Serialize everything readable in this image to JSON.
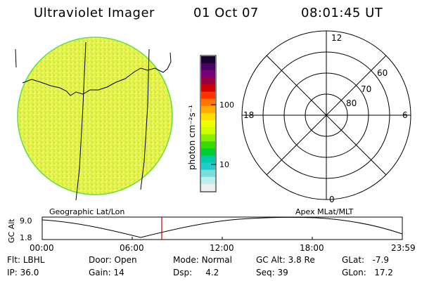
{
  "header": {
    "title": "Ultraviolet Imager",
    "date": "01 Oct 07",
    "time": "08:01:45 UT"
  },
  "colorbar": {
    "unit_label": "photon cm⁻²s⁻¹",
    "ticks": [
      "100",
      "10"
    ],
    "colors": [
      "#1a0030",
      "#4a0066",
      "#7a007a",
      "#9a0040",
      "#cc0000",
      "#ff3300",
      "#ff7700",
      "#ffaa00",
      "#ffdd00",
      "#eeff00",
      "#ccff00",
      "#88ee00",
      "#33dd00",
      "#00cc33",
      "#00ccaa",
      "#22cccc",
      "#77dddd",
      "#bbeeee",
      "#eeeeee"
    ]
  },
  "polar_plot": {
    "mlt_labels": {
      "top": "12",
      "right": "6",
      "bottom": "0",
      "left": "18"
    },
    "lat_labels": [
      "60",
      "70",
      "80"
    ]
  },
  "timeline": {
    "left_label": "Geographic Lat/Lon",
    "right_label": "Apex MLat/MLT",
    "axis_title": "GC Alt",
    "y_ticks": [
      "9.0",
      "1.8"
    ],
    "x_ticks": [
      "00:00",
      "06:00",
      "12:00",
      "18:00",
      "23:59"
    ],
    "marker_color": "#cc0000"
  },
  "status": {
    "row1": [
      {
        "label": "Flt:",
        "value": "LBHL"
      },
      {
        "label": "Door:",
        "value": "Open"
      },
      {
        "label": "Mode:",
        "value": "Normal"
      },
      {
        "label": "GC Alt:",
        "value": "3.8 Re"
      },
      {
        "label": "GLat:",
        "value": "-7.9"
      }
    ],
    "row2": [
      {
        "label": "IP:",
        "value": "36.0"
      },
      {
        "label": "Gain:",
        "value": "14"
      },
      {
        "label": "Dsp:",
        "value": "4.2"
      },
      {
        "label": "Seq:",
        "value": "39"
      },
      {
        "label": "GLon:",
        "value": "17.2"
      }
    ]
  }
}
